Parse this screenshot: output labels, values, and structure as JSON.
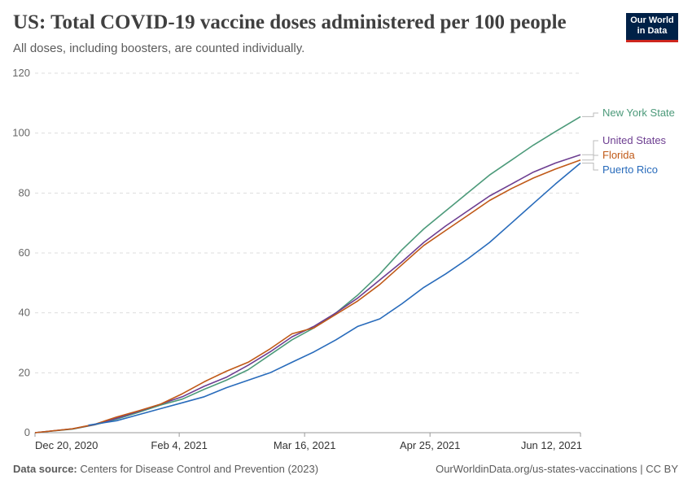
{
  "header": {
    "title": "US: Total COVID-19 vaccine doses administered per 100 people",
    "subtitle": "All doses, including boosters, are counted individually."
  },
  "logo": {
    "line1": "Our World",
    "line2": "in Data",
    "bg_color": "#002147",
    "accent_color": "#ce261e"
  },
  "footer": {
    "source_label": "Data source:",
    "source_text": "Centers for Disease Control and Prevention (2023)",
    "url_license": "OurWorldinData.org/us-states-vaccinations | CC BY"
  },
  "chart_data": {
    "type": "line",
    "title": "US: Total COVID-19 vaccine doses administered per 100 people",
    "subtitle": "All doses, including boosters, are counted individually.",
    "xlabel": "",
    "ylabel": "",
    "ylim": [
      0,
      120
    ],
    "yticks": [
      0,
      20,
      40,
      60,
      80,
      100,
      120
    ],
    "xlim": [
      "2020-12-20",
      "2021-06-12"
    ],
    "xticks": [
      "2020-12-20",
      "2021-02-04",
      "2021-03-16",
      "2021-04-25",
      "2021-06-12"
    ],
    "xtick_labels": [
      "Dec 20, 2020",
      "Feb 4, 2021",
      "Mar 16, 2021",
      "Apr 25, 2021",
      "Jun 12, 2021"
    ],
    "grid": "horizontal dashed",
    "legend": "right, end-of-line labels",
    "series": [
      {
        "name": "New York State",
        "color": "#4c9a7a",
        "points": [
          [
            "2020-12-20",
            0
          ],
          [
            "2021-01-01",
            1.2
          ],
          [
            "2021-01-08",
            2.6
          ],
          [
            "2021-01-15",
            4.5
          ],
          [
            "2021-01-22",
            6.8
          ],
          [
            "2021-01-29",
            9.2
          ],
          [
            "2021-02-05",
            11.2
          ],
          [
            "2021-02-12",
            14.5
          ],
          [
            "2021-02-19",
            17.5
          ],
          [
            "2021-02-26",
            21
          ],
          [
            "2021-03-05",
            26
          ],
          [
            "2021-03-12",
            31
          ],
          [
            "2021-03-19",
            35
          ],
          [
            "2021-03-26",
            40
          ],
          [
            "2021-04-02",
            46
          ],
          [
            "2021-04-09",
            53
          ],
          [
            "2021-04-16",
            61
          ],
          [
            "2021-04-23",
            68
          ],
          [
            "2021-04-30",
            74
          ],
          [
            "2021-05-07",
            80
          ],
          [
            "2021-05-14",
            86
          ],
          [
            "2021-05-21",
            91
          ],
          [
            "2021-05-28",
            96
          ],
          [
            "2021-06-04",
            100.5
          ],
          [
            "2021-06-12",
            105.5
          ]
        ]
      },
      {
        "name": "United States",
        "color": "#6d3e91",
        "points": [
          [
            "2020-12-20",
            0
          ],
          [
            "2021-01-01",
            1.3
          ],
          [
            "2021-01-08",
            2.7
          ],
          [
            "2021-01-15",
            4.8
          ],
          [
            "2021-01-22",
            7.1
          ],
          [
            "2021-01-29",
            9.5
          ],
          [
            "2021-02-05",
            12
          ],
          [
            "2021-02-12",
            15.5
          ],
          [
            "2021-02-19",
            18.5
          ],
          [
            "2021-02-26",
            22.5
          ],
          [
            "2021-03-05",
            27
          ],
          [
            "2021-03-12",
            32
          ],
          [
            "2021-03-19",
            35.5
          ],
          [
            "2021-03-26",
            40
          ],
          [
            "2021-04-02",
            45
          ],
          [
            "2021-04-09",
            51
          ],
          [
            "2021-04-16",
            57
          ],
          [
            "2021-04-23",
            63.5
          ],
          [
            "2021-04-30",
            69
          ],
          [
            "2021-05-07",
            74
          ],
          [
            "2021-05-14",
            79
          ],
          [
            "2021-05-21",
            83
          ],
          [
            "2021-05-28",
            87
          ],
          [
            "2021-06-04",
            90
          ],
          [
            "2021-06-12",
            92.8
          ]
        ]
      },
      {
        "name": "Florida",
        "color": "#c05917",
        "points": [
          [
            "2020-12-20",
            0
          ],
          [
            "2021-01-01",
            1.3
          ],
          [
            "2021-01-08",
            2.8
          ],
          [
            "2021-01-15",
            5.2
          ],
          [
            "2021-01-22",
            7.3
          ],
          [
            "2021-01-29",
            9.5
          ],
          [
            "2021-02-05",
            13
          ],
          [
            "2021-02-12",
            17
          ],
          [
            "2021-02-19",
            20.5
          ],
          [
            "2021-02-26",
            23.5
          ],
          [
            "2021-03-05",
            28
          ],
          [
            "2021-03-12",
            33
          ],
          [
            "2021-03-19",
            35
          ],
          [
            "2021-03-26",
            39.5
          ],
          [
            "2021-04-02",
            44
          ],
          [
            "2021-04-09",
            49.5
          ],
          [
            "2021-04-16",
            56
          ],
          [
            "2021-04-23",
            62.5
          ],
          [
            "2021-04-30",
            67.5
          ],
          [
            "2021-05-07",
            72.5
          ],
          [
            "2021-05-14",
            77.5
          ],
          [
            "2021-05-21",
            81.5
          ],
          [
            "2021-05-28",
            85
          ],
          [
            "2021-06-04",
            88
          ],
          [
            "2021-06-12",
            91
          ]
        ]
      },
      {
        "name": "Puerto Rico",
        "color": "#286bbb",
        "points": [
          [
            "2021-01-06",
            2.5
          ],
          [
            "2021-01-15",
            4
          ],
          [
            "2021-01-22",
            6
          ],
          [
            "2021-01-29",
            8
          ],
          [
            "2021-02-05",
            10
          ],
          [
            "2021-02-12",
            12
          ],
          [
            "2021-02-19",
            15
          ],
          [
            "2021-02-26",
            17.5
          ],
          [
            "2021-03-05",
            20
          ],
          [
            "2021-03-12",
            23.5
          ],
          [
            "2021-03-19",
            27
          ],
          [
            "2021-03-26",
            31
          ],
          [
            "2021-04-02",
            35.5
          ],
          [
            "2021-04-09",
            38
          ],
          [
            "2021-04-16",
            43
          ],
          [
            "2021-04-23",
            48.5
          ],
          [
            "2021-04-30",
            53
          ],
          [
            "2021-05-07",
            58
          ],
          [
            "2021-05-14",
            63.5
          ],
          [
            "2021-05-21",
            70
          ],
          [
            "2021-05-28",
            76.5
          ],
          [
            "2021-06-04",
            83
          ],
          [
            "2021-06-12",
            90
          ]
        ]
      }
    ]
  }
}
